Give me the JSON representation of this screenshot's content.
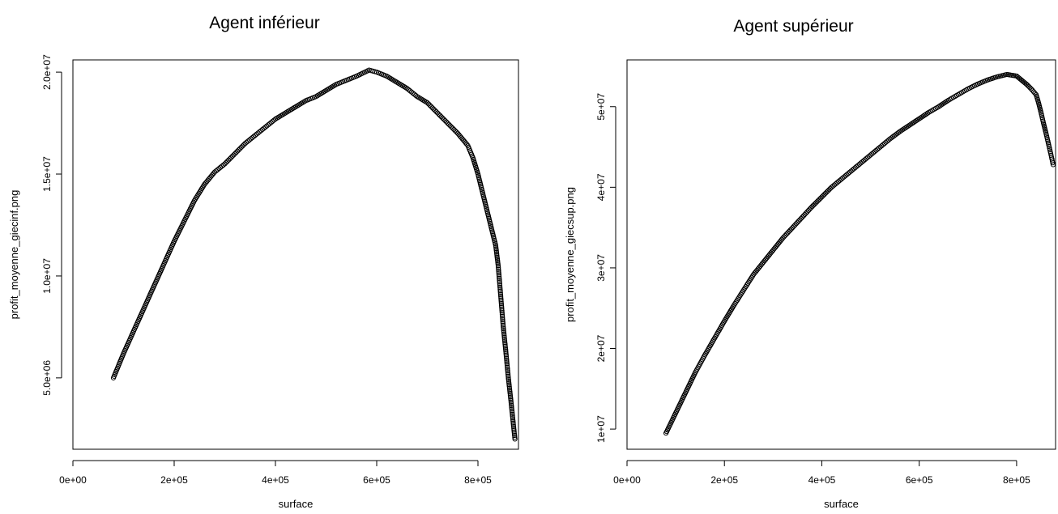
{
  "chart_data": [
    {
      "type": "scatter",
      "title": "Agent inférieur",
      "xlabel": "surface",
      "ylabel": "profit_moyenne_giecinf.png",
      "xlim": [
        0,
        880000
      ],
      "ylim": [
        1500000,
        20600000
      ],
      "x_ticks": [
        {
          "value": 0,
          "label": "0e+00"
        },
        {
          "value": 200000,
          "label": "2e+05"
        },
        {
          "value": 400000,
          "label": "4e+05"
        },
        {
          "value": 600000,
          "label": "6e+05"
        },
        {
          "value": 800000,
          "label": "8e+05"
        }
      ],
      "y_ticks": [
        {
          "value": 5000000,
          "label": "5.0e+06"
        },
        {
          "value": 10000000,
          "label": "1.0e+07"
        },
        {
          "value": 15000000,
          "label": "1.5e+07"
        },
        {
          "value": 20000000,
          "label": "2.0e+07"
        }
      ],
      "marker": "open-circle",
      "color": "#000000",
      "x": [
        80000,
        100000,
        120000,
        140000,
        160000,
        180000,
        200000,
        220000,
        240000,
        260000,
        280000,
        300000,
        320000,
        340000,
        360000,
        380000,
        400000,
        420000,
        440000,
        460000,
        480000,
        500000,
        520000,
        540000,
        560000,
        585000,
        600000,
        620000,
        640000,
        660000,
        680000,
        700000,
        720000,
        740000,
        760000,
        780000,
        790000,
        800000,
        810000,
        820000,
        830000,
        835000,
        840000,
        845000,
        850000,
        855000,
        860000,
        865000,
        870000,
        873000
      ],
      "y": [
        5000000,
        6200000,
        7300000,
        8400000,
        9500000,
        10600000,
        11700000,
        12700000,
        13700000,
        14500000,
        15100000,
        15500000,
        16000000,
        16500000,
        16900000,
        17300000,
        17700000,
        18000000,
        18300000,
        18600000,
        18800000,
        19100000,
        19400000,
        19600000,
        19800000,
        20100000,
        20000000,
        19800000,
        19500000,
        19200000,
        18800000,
        18500000,
        18000000,
        17500000,
        17000000,
        16400000,
        15800000,
        15000000,
        14000000,
        13000000,
        12000000,
        11500000,
        10500000,
        9000000,
        7500000,
        6300000,
        5000000,
        3900000,
        2700000,
        2000000
      ]
    },
    {
      "type": "scatter",
      "title": "Agent supérieur",
      "xlabel": "surface",
      "ylabel": "profit_moyenne_giecsup.png",
      "xlim": [
        0,
        880000
      ],
      "ylim": [
        7500000,
        55800000
      ],
      "x_ticks": [
        {
          "value": 0,
          "label": "0e+00"
        },
        {
          "value": 200000,
          "label": "2e+05"
        },
        {
          "value": 400000,
          "label": "4e+05"
        },
        {
          "value": 600000,
          "label": "6e+05"
        },
        {
          "value": 800000,
          "label": "8e+05"
        }
      ],
      "y_ticks": [
        {
          "value": 10000000,
          "label": "1e+07"
        },
        {
          "value": 20000000,
          "label": "2e+07"
        },
        {
          "value": 30000000,
          "label": "3e+07"
        },
        {
          "value": 40000000,
          "label": "4e+07"
        },
        {
          "value": 50000000,
          "label": "5e+07"
        }
      ],
      "marker": "open-circle",
      "color": "#000000",
      "x": [
        80000,
        100000,
        120000,
        140000,
        160000,
        180000,
        200000,
        220000,
        240000,
        260000,
        280000,
        300000,
        320000,
        340000,
        360000,
        380000,
        400000,
        420000,
        440000,
        460000,
        480000,
        500000,
        520000,
        540000,
        560000,
        580000,
        600000,
        620000,
        640000,
        660000,
        680000,
        700000,
        720000,
        740000,
        760000,
        780000,
        800000,
        810000,
        820000,
        830000,
        840000,
        845000,
        850000,
        855000,
        860000,
        865000,
        870000,
        875000
      ],
      "y": [
        9500000,
        12000000,
        14500000,
        17000000,
        19200000,
        21300000,
        23400000,
        25400000,
        27300000,
        29200000,
        30700000,
        32200000,
        33700000,
        35000000,
        36300000,
        37600000,
        38800000,
        40000000,
        41000000,
        42000000,
        43000000,
        44000000,
        45000000,
        46000000,
        46900000,
        47700000,
        48500000,
        49300000,
        50000000,
        50800000,
        51500000,
        52200000,
        52800000,
        53300000,
        53700000,
        54000000,
        53800000,
        53300000,
        52800000,
        52200000,
        51500000,
        50500000,
        49300000,
        48000000,
        46800000,
        45500000,
        44200000,
        42800000
      ]
    }
  ]
}
